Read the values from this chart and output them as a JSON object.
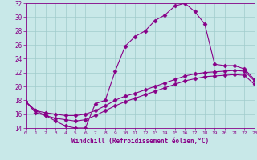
{
  "xlabel": "Windchill (Refroidissement éolien,°C)",
  "xlim": [
    0,
    23
  ],
  "ylim": [
    14,
    32
  ],
  "xticks": [
    0,
    1,
    2,
    3,
    4,
    5,
    6,
    7,
    8,
    9,
    10,
    11,
    12,
    13,
    14,
    15,
    16,
    17,
    18,
    19,
    20,
    21,
    22,
    23
  ],
  "yticks": [
    14,
    16,
    18,
    20,
    22,
    24,
    26,
    28,
    30,
    32
  ],
  "background_color": "#c8e8e8",
  "grid_color": "#a0cccc",
  "line_color": "#880088",
  "line1_x": [
    0,
    1,
    2,
    3,
    4,
    5,
    6,
    7,
    8,
    9,
    10,
    11,
    12,
    13,
    14,
    15,
    16,
    17,
    18,
    19,
    20,
    21,
    22,
    23
  ],
  "line1_y": [
    17.8,
    16.5,
    15.8,
    15.0,
    14.3,
    14.0,
    14.0,
    17.5,
    18.0,
    22.2,
    25.8,
    27.2,
    28.0,
    29.5,
    30.3,
    31.6,
    32.0,
    30.8,
    29.0,
    23.2,
    23.0,
    23.0,
    22.5,
    21.0
  ],
  "line2_x": [
    0,
    1,
    2,
    3,
    4,
    5,
    6,
    7,
    8,
    9,
    10,
    11,
    12,
    13,
    14,
    15,
    16,
    17,
    18,
    19,
    20,
    21,
    22,
    23
  ],
  "line2_y": [
    17.8,
    16.5,
    16.2,
    16.0,
    15.8,
    15.8,
    16.0,
    16.5,
    17.2,
    18.0,
    18.6,
    19.0,
    19.5,
    20.0,
    20.5,
    21.0,
    21.5,
    21.8,
    22.0,
    22.1,
    22.2,
    22.3,
    22.2,
    20.8
  ],
  "line3_x": [
    0,
    1,
    2,
    3,
    4,
    5,
    6,
    7,
    8,
    9,
    10,
    11,
    12,
    13,
    14,
    15,
    16,
    17,
    18,
    19,
    20,
    21,
    22,
    23
  ],
  "line3_y": [
    17.8,
    16.2,
    15.8,
    15.4,
    15.2,
    15.0,
    15.2,
    15.8,
    16.5,
    17.2,
    17.8,
    18.3,
    18.8,
    19.3,
    19.8,
    20.3,
    20.8,
    21.1,
    21.4,
    21.5,
    21.6,
    21.7,
    21.6,
    20.3
  ]
}
